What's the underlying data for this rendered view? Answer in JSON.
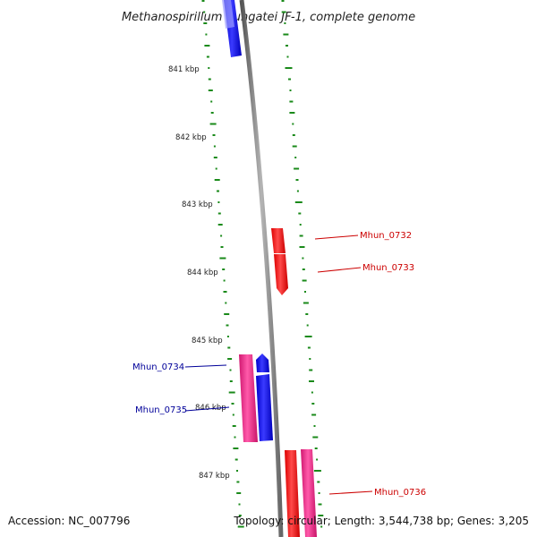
{
  "title": "Methanospirillum hungatei JF-1, complete genome",
  "footer": {
    "accession": "Accession: NC_007796",
    "topology": "Topology: circular; Length: 3,544,738 bp; Genes: 3,205"
  },
  "ruler_labels": [
    "841 kbp",
    "842 kbp",
    "843 kbp",
    "844 kbp",
    "845 kbp",
    "846 kbp",
    "847 kbp"
  ],
  "genes": [
    {
      "id": "forward-top",
      "label": "",
      "strand": "reverse",
      "color": "#0000ff"
    },
    {
      "id": "mhun-0732",
      "label": "Mhun_0732",
      "strand": "forward",
      "color": "#ff0000"
    },
    {
      "id": "mhun-0733",
      "label": "Mhun_0733",
      "strand": "forward",
      "color": "#ff0000"
    },
    {
      "id": "mhun-0734",
      "label": "Mhun_0734",
      "strand": "reverse",
      "color": "#0000aa"
    },
    {
      "id": "mhun-0735",
      "label": "Mhun_0735",
      "strand": "reverse",
      "color": "#0000aa"
    },
    {
      "id": "mhun-0736",
      "label": "Mhun_0736",
      "strand": "forward",
      "color": "#ff0000"
    }
  ],
  "colors": {
    "backbone": "#8a8a8a",
    "gc_skew_dots": "#1a8a1a",
    "cds_forward": "#ff0000",
    "cds_reverse": "#0000ff",
    "rna_pink": "#ee2288",
    "label_forward": "#cc0000",
    "label_reverse": "#000099"
  }
}
